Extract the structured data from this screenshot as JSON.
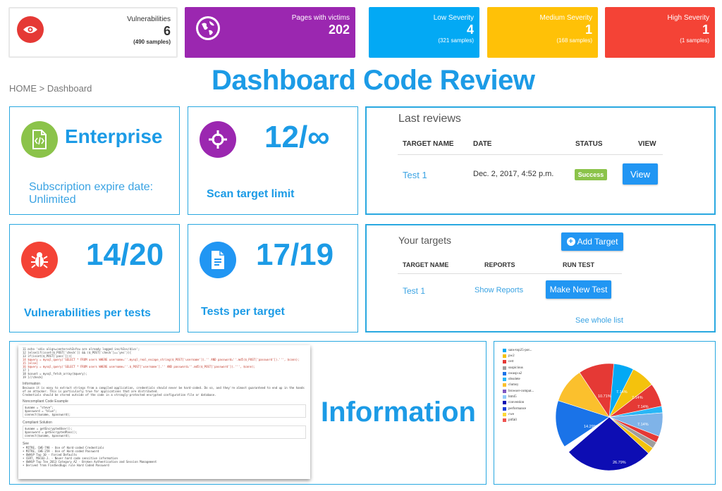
{
  "stats": {
    "vulnerabilities": {
      "title": "Vulnerabilities",
      "value": "6",
      "sub": "(490 samples)"
    },
    "pages": {
      "title": "Pages with victims",
      "value": "202"
    },
    "low": {
      "title": "Low Severity",
      "value": "4",
      "sub": "(321 samples)"
    },
    "medium": {
      "title": "Medium Severity",
      "value": "1",
      "sub": "(168 samples)"
    },
    "high": {
      "title": "High Severity",
      "value": "1",
      "sub": "(1 samples)"
    }
  },
  "breadcrumb": "HOME > Dashboard",
  "page_title": "Dashboard Code Review",
  "cards": {
    "enterprise": {
      "title": "Enterprise",
      "sub": "Subscription expire date: Unlimited"
    },
    "scan": {
      "value": "12/∞",
      "label": "Scan target limit"
    },
    "vuln": {
      "value": "14/20",
      "label": "Vulnerabilities per tests"
    },
    "tests": {
      "value": "17/19",
      "label": "Tests per target"
    }
  },
  "last_reviews": {
    "heading": "Last reviews",
    "columns": [
      "TARGET NAME",
      "DATE",
      "STATUS",
      "VIEW"
    ],
    "row": {
      "target": "Test 1",
      "date": "Dec. 2, 2017, 4:52 p.m.",
      "status": "Success",
      "view": "View"
    }
  },
  "your_targets": {
    "heading": "Your targets",
    "add_button": "Add Target",
    "columns": [
      "TARGET NAME",
      "REPORTS",
      "RUN TEST"
    ],
    "row": {
      "target": "Test 1",
      "reports": "Show Reports",
      "run": "Make New Test"
    },
    "see_all": "See whole list"
  },
  "information_label": "Information",
  "code_shot": {
    "lines": [
      "echo '<div align=center><h3>You are already logged in</h3></div>';",
      "}else{if(isset($_POST['check']) && ($_POST['check']=='yes')){",
      "  if(isset($_POST['pass'])){",
      "    $query = mysql_query('SELECT * FROM users WHERE username=''.mysql_real_escape_string($_POST['username']).'' AND password=''.md5($_POST['password']).''', $conn);",
      "  }else{",
      "    $query = mysql_query('SELECT * FROM users WHERE username=''.$_POST['username'].'' AND password=''.md5($_POST['password']).''', $conn);",
      "  }",
      "  $count = mysql_fetch_array($query);",
      "}//check}"
    ],
    "heading_info": "Information",
    "info_text": "Because it is easy to extract strings from a compiled application, credentials should never be hard-coded. Do so, and they're almost guaranteed to end up in the hands of an attacker. This is particularly true for applications that are distributed.",
    "info_text2": "Credentials should be stored outside of the code in a strongly-protected encrypted configuration file or database.",
    "noncompliant_heading": "Noncompliant Code Example",
    "noncompliant_lines": [
      "$uname = \"steve\";",
      "$password = \"blue\";",
      "connect($uname, $password);"
    ],
    "compliant_heading": "Compliant Solution",
    "compliant_lines": [
      "$uname = getEncryptedUser();",
      "$password = getEncryptedPass();",
      "connect($uname, $password);"
    ],
    "see_heading": "See",
    "see_items": [
      "MITRE, CWE-798 - Use of Hard-coded Credentials",
      "MITRE, CWE-259 - Use of Hard-coded Password",
      "OWASP Top 10 - Forced Defaults",
      "CERT, MSC03-J. - Never hard code sensitive information",
      "OWASP Top Ten 2013 Category A2 - Broken Authentication and Session Management",
      "Derived from FindSecBugs rule Hard Coded Password"
    ]
  },
  "chart_data": {
    "type": "pie",
    "legend_placement": "top-left",
    "categories": [
      "sans-top25-por...",
      "pw2",
      "cert",
      "suspicious",
      "owasp-a2",
      "obsolete",
      "clumsy",
      "browser-compat...",
      "html5",
      "convention",
      "performance",
      "cwe",
      "pitfall"
    ],
    "colors": [
      "#03a9f4",
      "#f4c20d",
      "#e53935",
      "#9e9e9e",
      "#1a73e8",
      "#29b6f6",
      "#fbc02d",
      "#7e57c2",
      "#90caf9",
      "#0d0db3",
      "#1e40d8",
      "#fdd835",
      "#ef5350"
    ],
    "slice_labels": [
      "7.14%",
      "7.14%",
      "7.14%",
      "7.14%",
      "26.79%",
      "14.29%",
      "10.71%"
    ]
  }
}
